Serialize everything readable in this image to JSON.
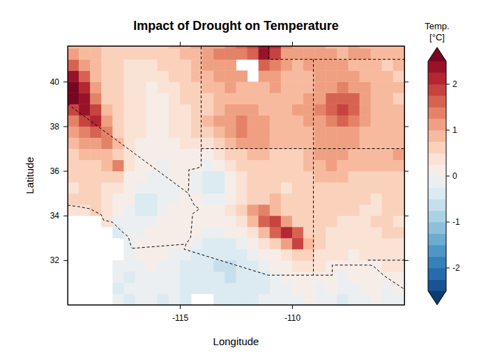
{
  "chart_data": {
    "type": "heatmap",
    "title": "Impact of Drought on Temperature",
    "xlabel": "Longitude",
    "ylabel": "Latitude",
    "xlim": [
      -120,
      -105
    ],
    "ylim": [
      30,
      41.6
    ],
    "xticks": [
      -115,
      -110
    ],
    "yticks": [
      32,
      34,
      36,
      38,
      40
    ],
    "x": [
      -119.75,
      -119.25,
      -118.75,
      -118.25,
      -117.75,
      -117.25,
      -116.75,
      -116.25,
      -115.75,
      -115.25,
      -114.75,
      -114.25,
      -113.75,
      -113.25,
      -112.75,
      -112.25,
      -111.75,
      -111.25,
      -110.75,
      -110.25,
      -109.75,
      -109.25,
      -108.75,
      -108.25,
      -107.75,
      -107.25,
      -106.75,
      -106.25,
      -105.75,
      -105.25
    ],
    "y": [
      30.25,
      30.75,
      31.25,
      31.75,
      32.25,
      32.75,
      33.25,
      33.75,
      34.25,
      34.75,
      35.25,
      35.75,
      36.25,
      36.75,
      37.25,
      37.75,
      38.25,
      38.75,
      39.25,
      39.75,
      40.25,
      40.75,
      41.25,
      41.75
    ],
    "z": [
      [
        null,
        null,
        null,
        null,
        -0.2,
        -0.3,
        -0.2,
        -0.2,
        -0.3,
        -0.2,
        -0.3,
        null,
        null,
        -0.4,
        -0.4,
        -0.3,
        -0.3,
        -0.2,
        -0.2,
        -0.1,
        -0.1,
        0.0,
        -0.2,
        -0.1,
        -0.3,
        -0.2,
        -0.1,
        0.0,
        -0.2,
        -0.1
      ],
      [
        null,
        null,
        null,
        null,
        -0.3,
        -0.2,
        -0.2,
        -0.1,
        -0.2,
        -0.2,
        -0.3,
        -0.4,
        -0.4,
        -0.5,
        -0.5,
        -0.4,
        -0.4,
        -0.3,
        -0.2,
        -0.1,
        0.0,
        0.1,
        -0.1,
        0.0,
        -0.2,
        -0.1,
        0.0,
        0.1,
        -0.1,
        0.0
      ],
      [
        null,
        null,
        null,
        null,
        -0.2,
        -0.3,
        -0.2,
        -0.1,
        -0.1,
        -0.2,
        -0.3,
        -0.4,
        -0.5,
        -0.5,
        -0.6,
        -0.5,
        -0.4,
        -0.3,
        -0.2,
        0.0,
        0.1,
        0.1,
        0.0,
        0.1,
        -0.1,
        0.1,
        0.0,
        0.1,
        0.2,
        0.1
      ],
      [
        null,
        null,
        null,
        null,
        -0.1,
        -0.2,
        -0.1,
        0.0,
        -0.1,
        -0.2,
        -0.3,
        -0.4,
        -0.5,
        -0.6,
        -0.6,
        -0.5,
        -0.4,
        -0.2,
        0.0,
        0.2,
        0.3,
        0.3,
        0.3,
        0.2,
        0.1,
        0.2,
        0.1,
        0.2,
        0.3,
        0.3
      ],
      [
        null,
        null,
        null,
        null,
        null,
        -0.1,
        0.0,
        0.1,
        0.0,
        -0.1,
        -0.2,
        -0.3,
        -0.4,
        -0.5,
        -0.5,
        -0.4,
        -0.2,
        0.0,
        0.2,
        0.4,
        0.6,
        0.5,
        0.4,
        0.3,
        0.3,
        0.2,
        0.3,
        0.3,
        0.3,
        0.4
      ],
      [
        null,
        null,
        null,
        null,
        null,
        -0.1,
        0.0,
        0.1,
        0.1,
        0.1,
        0.0,
        -0.2,
        -0.3,
        -0.4,
        -0.3,
        -0.1,
        0.1,
        0.3,
        0.6,
        1.2,
        1.8,
        0.8,
        0.5,
        0.4,
        0.3,
        0.3,
        0.3,
        0.4,
        0.4,
        0.4
      ],
      [
        null,
        null,
        null,
        null,
        -0.3,
        -0.2,
        -0.1,
        0.0,
        0.0,
        0.1,
        0.1,
        0.0,
        -0.1,
        -0.1,
        0.0,
        0.2,
        0.4,
        0.8,
        1.7,
        2.0,
        1.5,
        0.6,
        0.5,
        0.4,
        0.4,
        0.3,
        0.4,
        0.4,
        0.5,
        0.5
      ],
      [
        null,
        null,
        null,
        0.3,
        -0.2,
        -0.1,
        -0.2,
        -0.1,
        0.0,
        0.1,
        0.2,
        0.2,
        0.1,
        0.1,
        0.2,
        0.4,
        0.8,
        1.6,
        1.9,
        1.2,
        0.6,
        0.5,
        0.5,
        0.5,
        0.4,
        0.4,
        0.4,
        0.5,
        0.5,
        0.4
      ],
      [
        0.3,
        0.4,
        0.5,
        0.3,
        0.2,
        -0.1,
        -0.4,
        -0.3,
        -0.1,
        0.0,
        0.1,
        0.2,
        0.1,
        0.2,
        0.3,
        0.5,
        1.0,
        1.3,
        0.9,
        0.6,
        0.5,
        0.5,
        0.6,
        0.6,
        0.5,
        0.5,
        0.4,
        0.4,
        0.5,
        0.5
      ],
      [
        0.5,
        0.6,
        0.5,
        0.3,
        0.2,
        0.0,
        -0.3,
        -0.5,
        -0.2,
        -0.1,
        0.0,
        0.0,
        -0.2,
        -0.1,
        0.1,
        0.4,
        0.6,
        0.7,
        0.8,
        0.6,
        0.5,
        0.6,
        0.7,
        0.6,
        0.6,
        0.5,
        0.5,
        0.4,
        0.5,
        0.6
      ],
      [
        0.4,
        0.5,
        0.5,
        0.4,
        0.3,
        0.1,
        -0.1,
        -0.2,
        -0.2,
        -0.1,
        0.0,
        -0.1,
        -0.3,
        -0.3,
        0.0,
        0.3,
        0.5,
        0.6,
        0.5,
        0.4,
        0.5,
        0.6,
        0.7,
        0.7,
        0.7,
        0.6,
        0.6,
        0.5,
        0.6,
        0.7
      ],
      [
        0.5,
        0.5,
        0.6,
        0.6,
        0.5,
        0.2,
        0.0,
        -0.1,
        -0.1,
        0.0,
        0.0,
        -0.1,
        -0.3,
        -0.3,
        0.1,
        0.4,
        0.5,
        0.6,
        0.5,
        0.5,
        0.6,
        0.7,
        0.8,
        0.9,
        0.8,
        0.7,
        0.7,
        0.7,
        0.6,
        0.7
      ],
      [
        0.6,
        0.6,
        0.7,
        0.8,
        1.4,
        0.3,
        0.1,
        0.0,
        -0.1,
        0.0,
        0.1,
        0.0,
        -0.2,
        0.0,
        0.3,
        0.5,
        0.6,
        0.7,
        0.6,
        0.6,
        0.7,
        0.8,
        0.9,
        1.0,
        0.9,
        0.8,
        0.8,
        0.8,
        0.8,
        0.9
      ],
      [
        0.7,
        0.8,
        0.8,
        0.9,
        0.7,
        0.3,
        0.1,
        0.1,
        0.0,
        0.1,
        0.1,
        0.2,
        0.1,
        0.3,
        0.5,
        0.7,
        0.8,
        0.9,
        0.7,
        0.7,
        0.7,
        0.8,
        1.0,
        1.0,
        1.0,
        0.9,
        0.8,
        0.8,
        0.9,
        1.0
      ],
      [
        0.8,
        1.0,
        1.1,
        1.3,
        0.9,
        0.4,
        0.2,
        0.1,
        0.1,
        0.2,
        0.3,
        0.3,
        0.4,
        0.6,
        0.9,
        1.0,
        1.1,
        1.0,
        0.8,
        0.8,
        0.8,
        0.9,
        1.1,
        1.2,
        1.1,
        1.0,
        0.9,
        0.8,
        0.9,
        0.9
      ],
      [
        1.0,
        1.3,
        1.6,
        1.4,
        0.7,
        0.4,
        0.3,
        0.2,
        0.2,
        0.3,
        0.4,
        0.5,
        0.6,
        0.8,
        1.1,
        1.4,
        1.2,
        1.0,
        0.9,
        0.8,
        0.8,
        0.9,
        1.0,
        1.1,
        1.2,
        1.1,
        0.9,
        0.8,
        0.8,
        0.8
      ],
      [
        1.3,
        1.8,
        2.0,
        1.2,
        0.6,
        0.4,
        0.3,
        0.2,
        0.2,
        0.3,
        0.4,
        0.6,
        0.8,
        1.0,
        1.1,
        1.3,
        1.2,
        1.0,
        0.9,
        0.8,
        0.9,
        1.0,
        1.1,
        1.4,
        1.6,
        1.3,
        1.0,
        0.8,
        0.8,
        0.9
      ],
      [
        1.8,
        2.4,
        1.8,
        0.9,
        0.5,
        0.4,
        0.3,
        0.2,
        0.1,
        0.3,
        0.4,
        0.5,
        0.7,
        0.9,
        1.0,
        1.2,
        1.0,
        0.8,
        0.9,
        0.9,
        1.0,
        1.1,
        1.3,
        1.7,
        1.9,
        1.6,
        1.1,
        0.9,
        0.8,
        0.8
      ],
      [
        2.5,
        2.4,
        1.4,
        0.7,
        0.5,
        0.4,
        0.3,
        0.1,
        0.2,
        0.3,
        0.5,
        0.6,
        0.7,
        0.8,
        0.9,
        0.8,
        0.8,
        0.9,
        0.9,
        0.8,
        0.9,
        1.0,
        1.2,
        1.5,
        1.7,
        1.5,
        1.1,
        0.9,
        0.8,
        0.7
      ],
      [
        2.6,
        2.0,
        1.1,
        0.6,
        0.5,
        0.4,
        0.3,
        0.2,
        0.3,
        0.4,
        0.6,
        0.7,
        0.8,
        0.9,
        1.0,
        0.9,
        0.8,
        0.9,
        1.0,
        0.8,
        0.8,
        0.9,
        1.1,
        1.2,
        1.3,
        1.1,
        1.0,
        0.9,
        0.8,
        0.8
      ],
      [
        2.3,
        1.6,
        0.9,
        0.6,
        0.5,
        0.4,
        0.3,
        0.3,
        0.4,
        0.5,
        0.6,
        0.8,
        0.9,
        1.0,
        1.1,
        1.0,
        null,
        1.2,
        1.1,
        0.9,
        0.8,
        0.9,
        1.0,
        1.1,
        1.1,
        1.0,
        0.9,
        0.8,
        0.8,
        0.7
      ],
      [
        1.6,
        1.1,
        0.8,
        0.6,
        0.5,
        0.4,
        0.4,
        0.4,
        0.5,
        0.6,
        0.7,
        0.8,
        1.0,
        1.1,
        1.2,
        null,
        null,
        1.5,
        1.3,
        1.0,
        0.9,
        1.0,
        1.0,
        1.1,
        1.0,
        0.9,
        0.9,
        0.8,
        0.7,
        0.8
      ],
      [
        1.0,
        0.9,
        0.8,
        0.7,
        0.6,
        0.5,
        0.5,
        0.5,
        0.6,
        0.7,
        0.8,
        0.9,
        1.2,
        1.3,
        1.4,
        1.3,
        1.6,
        2.4,
        1.9,
        1.2,
        1.0,
        1.1,
        1.0,
        1.0,
        0.9,
        1.0,
        1.0,
        0.9,
        0.8,
        0.8
      ],
      [
        0.8,
        0.9,
        0.8,
        0.7,
        0.6,
        0.5,
        0.5,
        0.6,
        0.7,
        0.8,
        0.9,
        1.0,
        1.1,
        1.2,
        1.3,
        1.5,
        1.8,
        2.3,
        2.0,
        1.3,
        1.0,
        1.0,
        1.0,
        0.9,
        0.9,
        1.0,
        0.9,
        0.8,
        0.8,
        0.9
      ]
    ],
    "colorbar": {
      "title": [
        "Temp.",
        "[°C]"
      ],
      "breaks": [
        -2.5,
        -2.25,
        -2,
        -1.75,
        -1.5,
        -1.25,
        -1,
        -0.75,
        -0.5,
        -0.25,
        0,
        0.25,
        0.5,
        0.75,
        1,
        1.25,
        1.5,
        1.75,
        2,
        2.25,
        2.5
      ],
      "ticks": [
        -2,
        -1,
        0,
        1,
        2
      ]
    },
    "borders": [
      [
        [
          -120.0,
          34.46
        ],
        [
          -119.5,
          34.4
        ],
        [
          -119.0,
          34.3
        ],
        [
          -118.5,
          34.03
        ],
        [
          -118.4,
          33.8
        ],
        [
          -118.0,
          33.7
        ],
        [
          -117.6,
          33.3
        ],
        [
          -117.3,
          33.05
        ],
        [
          -117.15,
          32.55
        ]
      ],
      [
        [
          -120.0,
          39.0
        ],
        [
          -114.63,
          35.0
        ],
        [
          -114.35,
          34.45
        ],
        [
          -114.13,
          34.3
        ],
        [
          -114.43,
          34.08
        ],
        [
          -114.52,
          33.03
        ],
        [
          -114.72,
          32.72
        ]
      ],
      [
        [
          -117.12,
          32.53
        ],
        [
          -114.72,
          32.72
        ],
        [
          -114.81,
          32.49
        ],
        [
          -111.07,
          31.33
        ],
        [
          -108.21,
          31.33
        ],
        [
          -108.21,
          31.78
        ],
        [
          -106.53,
          31.78
        ],
        [
          -106.4,
          31.75
        ],
        [
          -105.9,
          31.3
        ],
        [
          -105.0,
          30.7
        ]
      ],
      [
        [
          -114.05,
          42.0
        ],
        [
          -114.05,
          36.19
        ],
        [
          -114.3,
          36.1
        ],
        [
          -114.6,
          36.05
        ],
        [
          -114.6,
          35.5
        ],
        [
          -114.63,
          35.0
        ]
      ],
      [
        [
          -114.05,
          37.0
        ],
        [
          -105.0,
          37.0
        ]
      ],
      [
        [
          -109.05,
          41.0
        ],
        [
          -109.05,
          31.33
        ]
      ],
      [
        [
          -111.05,
          42.0
        ],
        [
          -111.05,
          41.0
        ],
        [
          -105.0,
          41.0
        ]
      ],
      [
        [
          -106.62,
          32.0
        ],
        [
          -105.0,
          32.0
        ]
      ]
    ]
  }
}
